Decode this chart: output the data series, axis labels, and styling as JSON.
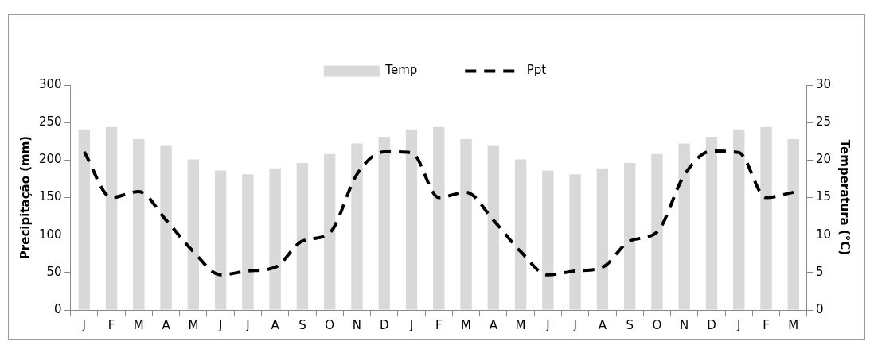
{
  "chart_data": {
    "type": "bar",
    "ylabel": "Precipitação (mm)",
    "y2label": "Temperatura (°C)",
    "categories": [
      "J",
      "F",
      "M",
      "A",
      "M",
      "J",
      "J",
      "A",
      "S",
      "O",
      "N",
      "D",
      "J",
      "F",
      "M",
      "A",
      "M",
      "J",
      "J",
      "A",
      "S",
      "O",
      "N",
      "D",
      "J",
      "F",
      "M"
    ],
    "series": [
      {
        "name": "Temp",
        "axis": "y2",
        "color": "#d9d9d9",
        "values": [
          24.1,
          24.4,
          22.8,
          21.9,
          20.1,
          18.6,
          18.1,
          18.9,
          19.6,
          20.8,
          22.2,
          23.1,
          24.1,
          24.4,
          22.8,
          21.9,
          20.1,
          18.6,
          18.1,
          18.9,
          19.6,
          20.8,
          22.2,
          23.1,
          24.1,
          24.4,
          22.8
        ]
      },
      {
        "name": "Ppt",
        "type": "line",
        "color": "#000000",
        "line_style": "dashed",
        "marker": "none",
        "values": [
          211,
          150,
          158,
          120,
          78,
          47,
          52,
          57,
          92,
          103,
          181,
          211,
          210,
          150,
          157,
          120,
          78,
          47,
          52,
          57,
          92,
          104,
          180,
          212,
          210,
          150,
          157
        ]
      }
    ],
    "ylim": [
      0,
      300
    ],
    "yticks": [
      0,
      50,
      100,
      150,
      200,
      250,
      300
    ],
    "y2lim": [
      0,
      30
    ],
    "y2ticks": [
      0,
      5,
      10,
      15,
      20,
      25,
      30
    ],
    "grid": false,
    "legend": "top"
  }
}
